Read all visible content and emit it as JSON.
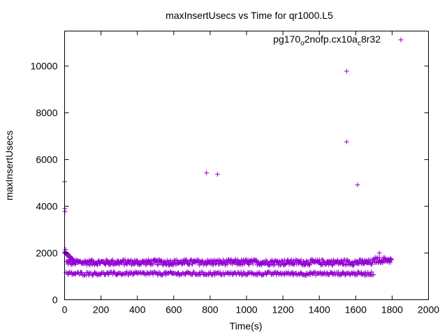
{
  "chart_data": {
    "type": "scatter",
    "title": "maxInsertUsecs vs Time for qr1000.L5",
    "xlabel": "Time(s)",
    "ylabel": "maxInsertUsecs",
    "xlim": [
      0,
      2000
    ],
    "ylim": [
      0,
      11500
    ],
    "x_ticks": [
      "0",
      "200",
      "400",
      "600",
      "800",
      "1000",
      "1200",
      "1400",
      "1600",
      "1800",
      "2000"
    ],
    "x_tick_values": [
      0,
      200,
      400,
      600,
      800,
      1000,
      1200,
      1400,
      1600,
      1800,
      2000
    ],
    "y_ticks": [
      "0",
      "2000",
      "4000",
      "6000",
      "8000",
      "10000"
    ],
    "y_tick_values": [
      0,
      2000,
      4000,
      6000,
      8000,
      10000
    ],
    "grid": false,
    "legend_position": "top-right",
    "marker": "plus",
    "series": [
      {
        "name": "pg170_o2nofp.cx10a_c8r32",
        "color": "#9400d3",
        "notable_points": [
          {
            "x": 0,
            "y": 5050
          },
          {
            "x": 1,
            "y": 3900
          },
          {
            "x": 2,
            "y": 3780
          },
          {
            "x": 5,
            "y": 2150
          },
          {
            "x": 780,
            "y": 5430
          },
          {
            "x": 840,
            "y": 5370
          },
          {
            "x": 1550,
            "y": 9780
          },
          {
            "x": 1550,
            "y": 6760
          },
          {
            "x": 1610,
            "y": 4920
          },
          {
            "x": 1730,
            "y": 2000
          }
        ],
        "bands": [
          {
            "x_range": [
              10,
              1800
            ],
            "y_center": 1600,
            "y_spread": 120,
            "description": "upper band"
          },
          {
            "x_range": [
              10,
              1700
            ],
            "y_center": 1120,
            "y_spread": 70,
            "description": "lower band"
          }
        ]
      }
    ]
  }
}
